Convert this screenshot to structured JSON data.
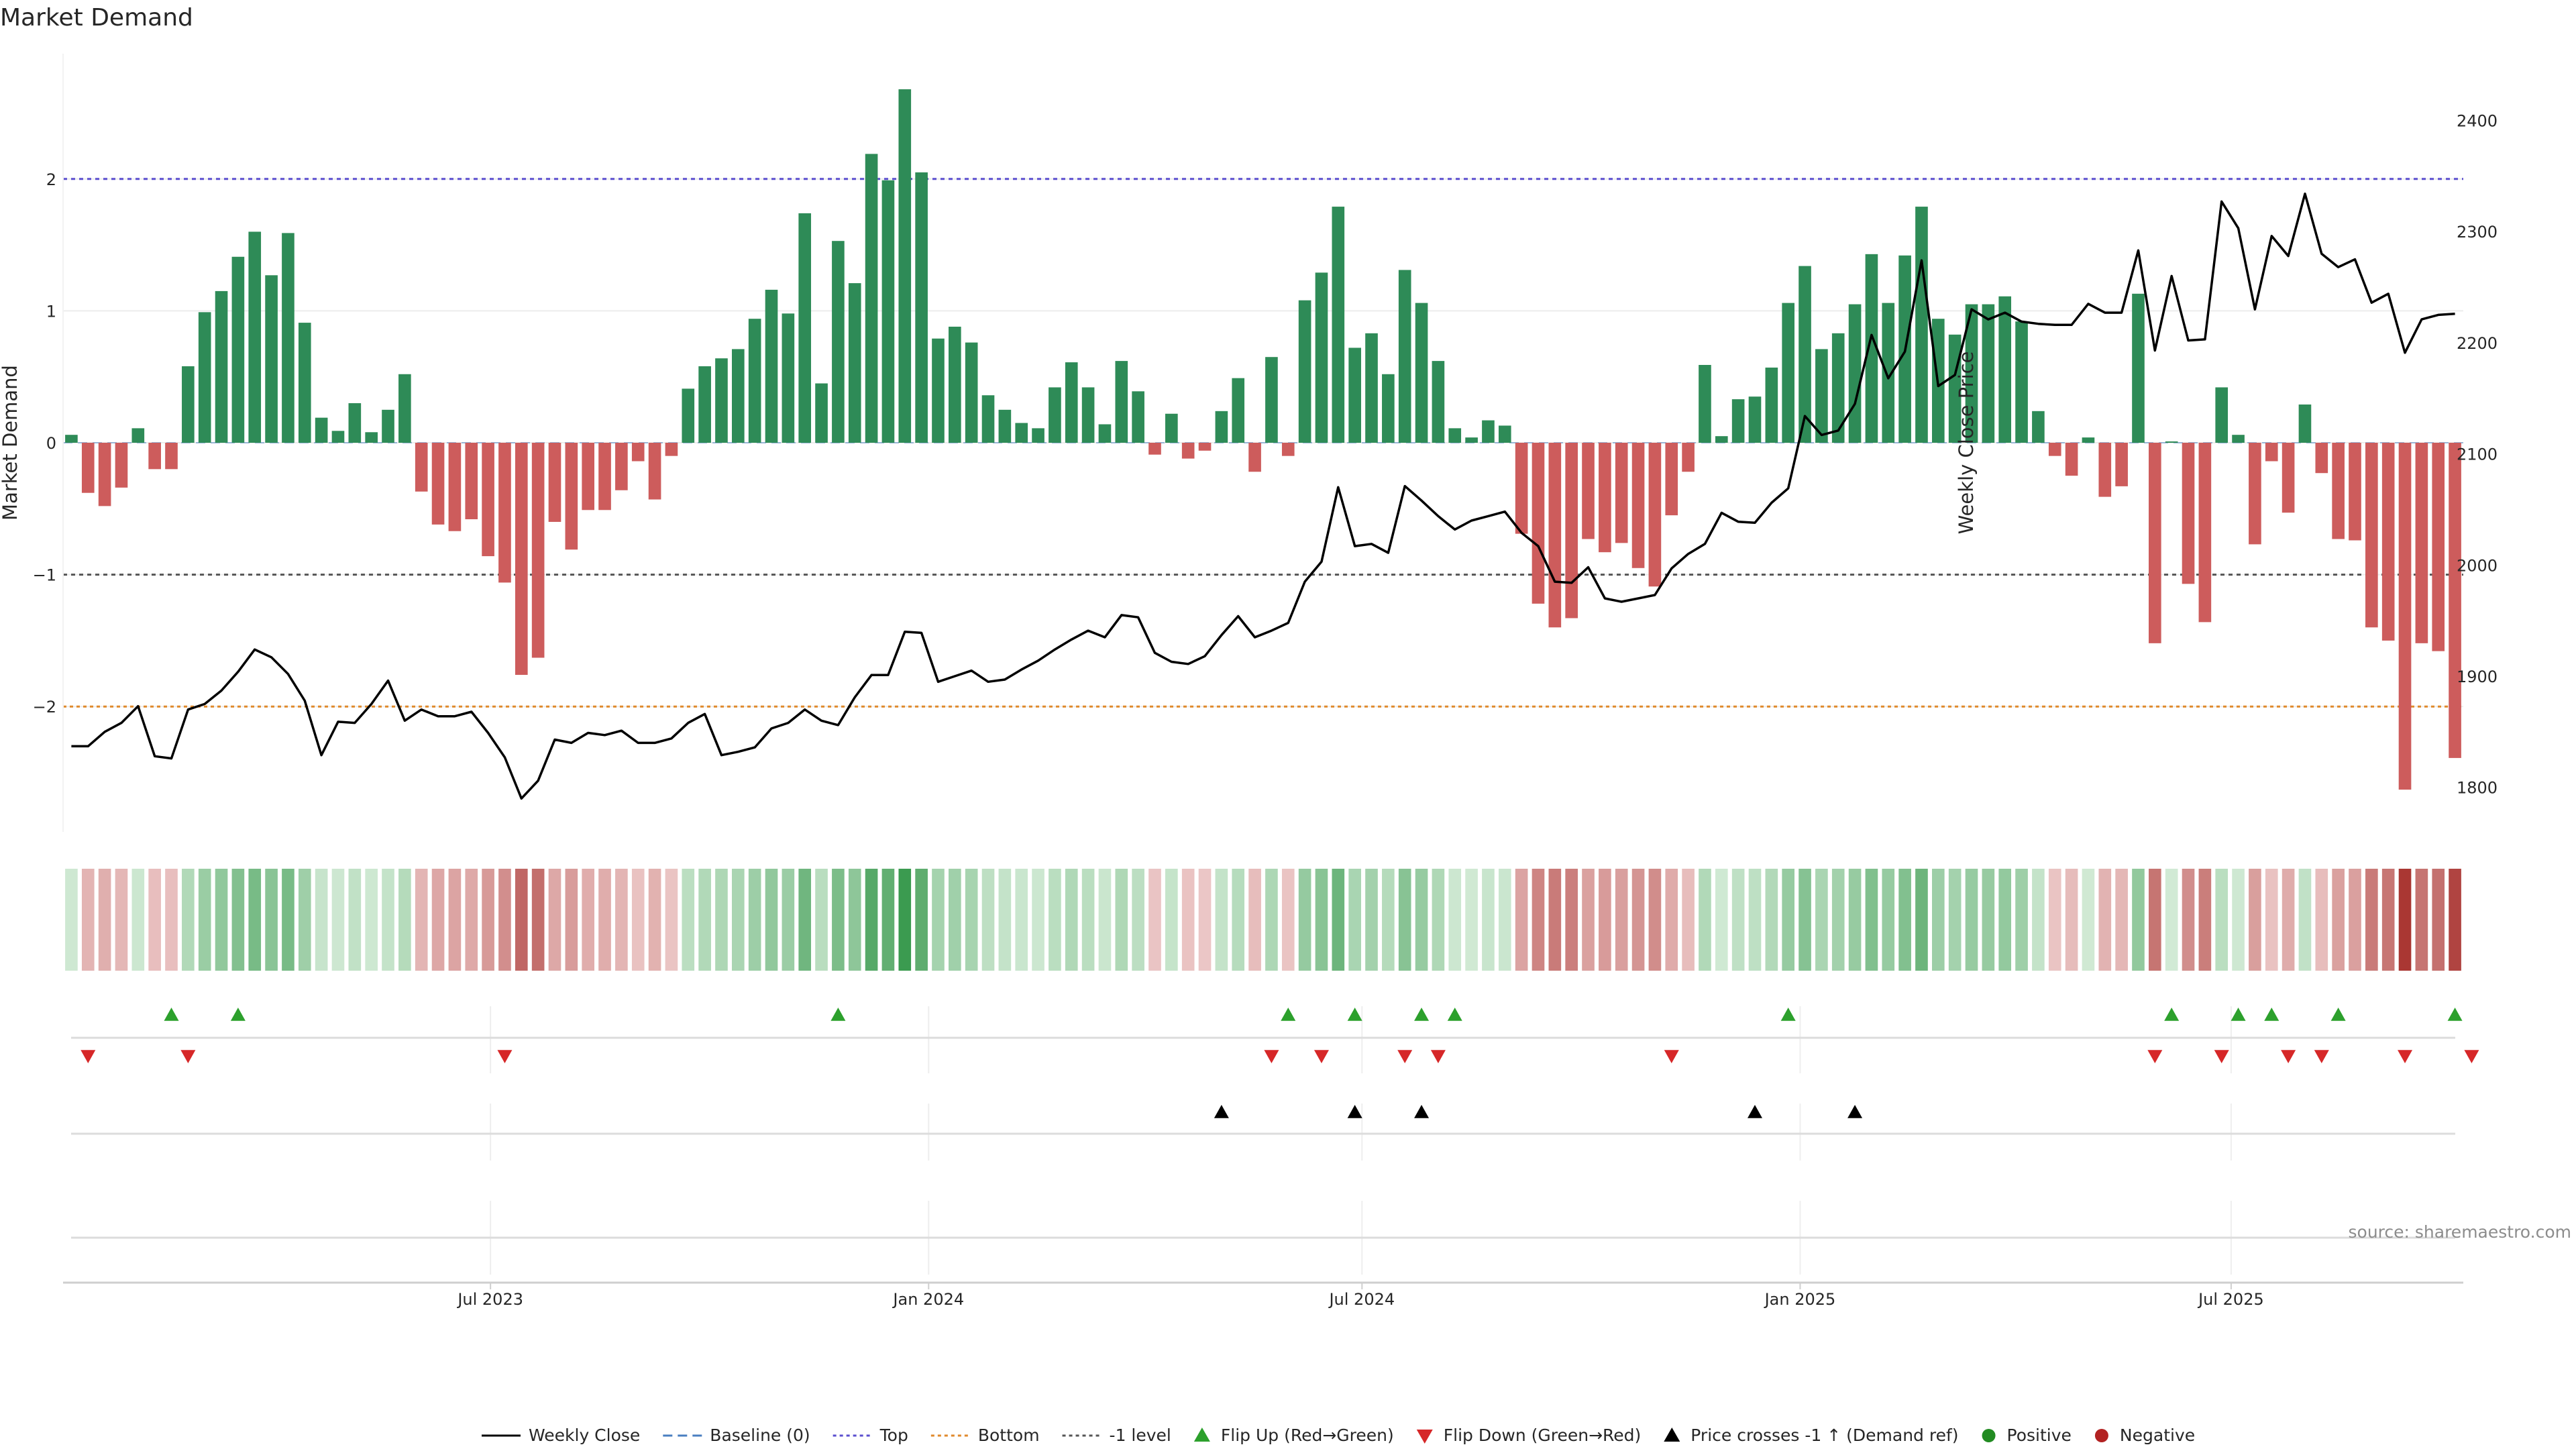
{
  "chart_data": {
    "type": "bar",
    "title": "Market Demand",
    "ylabel_left": "Market Demand",
    "ylabel_right": "Weekly Close Price",
    "source": "source: sharemaestro.com",
    "start_date": "2023-01-06",
    "week_spacing": 7,
    "ylim_left": [
      -2.95,
      2.95
    ],
    "ylim_right": [
      1760,
      2460
    ],
    "left_ticks": [
      2,
      1,
      0,
      -1,
      -2
    ],
    "left_tick_labels": [
      "2",
      "1",
      "0",
      "−1",
      "−2"
    ],
    "right_ticks": [
      2400,
      2300,
      2200,
      2100,
      2000,
      1900,
      1800
    ],
    "right_tick_labels": [
      "2400",
      "2300",
      "2200",
      "2100",
      "2000",
      "1900",
      "1800"
    ],
    "x_ticks": [
      {
        "date": "2023-07-01",
        "label": "Jul 2023"
      },
      {
        "date": "2024-01-01",
        "label": "Jan 2024"
      },
      {
        "date": "2024-07-01",
        "label": "Jul 2024"
      },
      {
        "date": "2025-01-01",
        "label": "Jan 2025"
      },
      {
        "date": "2025-07-01",
        "label": "Jul 2025"
      }
    ],
    "reference_lines": [
      {
        "name": "Top",
        "value": 2,
        "color": "#5b4fcf"
      },
      {
        "name": "-1 level",
        "value": -1,
        "color": "#555555"
      },
      {
        "name": "Bottom",
        "value": -2,
        "color": "#e08a2c"
      },
      {
        "name": "Baseline (0)",
        "value": 0,
        "color": "#4a7fc1"
      }
    ],
    "series": [
      {
        "name": "Market Demand",
        "values": [
          0.06,
          -0.38,
          -0.48,
          -0.34,
          0.11,
          -0.2,
          -0.2,
          0.58,
          0.99,
          1.15,
          1.41,
          1.6,
          1.27,
          1.59,
          0.91,
          0.19,
          0.09,
          0.3,
          0.08,
          0.25,
          0.52,
          -0.37,
          -0.62,
          -0.67,
          -0.58,
          -0.86,
          -1.06,
          -1.76,
          -1.63,
          -0.6,
          -0.81,
          -0.51,
          -0.51,
          -0.36,
          -0.14,
          -0.43,
          -0.1,
          0.41,
          0.58,
          0.64,
          0.71,
          0.94,
          1.16,
          0.98,
          1.74,
          0.45,
          1.53,
          1.21,
          2.19,
          1.99,
          2.68,
          2.05,
          0.79,
          0.88,
          0.76,
          0.36,
          0.25,
          0.15,
          0.11,
          0.42,
          0.61,
          0.42,
          0.14,
          0.62,
          0.39,
          -0.09,
          0.22,
          -0.12,
          -0.06,
          0.24,
          0.49,
          -0.22,
          0.65,
          -0.1,
          1.08,
          1.29,
          1.79,
          0.72,
          0.83,
          0.52,
          1.31,
          1.06,
          0.62,
          0.11,
          0.04,
          0.17,
          0.13,
          -0.69,
          -1.22,
          -1.4,
          -1.33,
          -0.73,
          -0.83,
          -0.76,
          -0.95,
          -1.09,
          -0.55,
          -0.22,
          0.59,
          0.05,
          0.33,
          0.35,
          0.57,
          1.06,
          1.34,
          0.71,
          0.83,
          1.05,
          1.43,
          1.06,
          1.42,
          1.79,
          0.94,
          0.82,
          1.05,
          1.05,
          1.11,
          0.92,
          0.24,
          -0.1,
          -0.25,
          0.04,
          -0.41,
          -0.33,
          1.13,
          -1.52,
          0.01,
          -1.07,
          -1.36,
          0.42,
          0.06,
          -0.77,
          -0.14,
          -0.53,
          0.29,
          -0.23,
          -0.73,
          -0.74,
          -1.4,
          -1.5,
          -2.63,
          -1.52,
          -1.58,
          -2.39
        ]
      },
      {
        "name": "Weekly Close",
        "values": [
          1837,
          1837,
          1850,
          1858,
          1873,
          1828,
          1826,
          1870,
          1875,
          1887,
          1904,
          1924,
          1917,
          1902,
          1878,
          1829,
          1859,
          1858,
          1875,
          1896,
          1860,
          1870,
          1864,
          1864,
          1868,
          1849,
          1827,
          1790,
          1806,
          1843,
          1840,
          1849,
          1847,
          1851,
          1840,
          1840,
          1844,
          1858,
          1866,
          1829,
          1832,
          1836,
          1853,
          1858,
          1870,
          1860,
          1856,
          1881,
          1901,
          1901,
          1940,
          1939,
          1895,
          1900,
          1905,
          1895,
          1897,
          1906,
          1914,
          1924,
          1933,
          1941,
          1935,
          1955,
          1953,
          1921,
          1913,
          1911,
          1918,
          1937,
          1954,
          1935,
          1941,
          1948,
          1985,
          2003,
          2070,
          2017,
          2019,
          2011,
          2071,
          2058,
          2044,
          2032,
          2040,
          2044,
          2048,
          2029,
          2017,
          1985,
          1984,
          1998,
          1970,
          1967,
          1970,
          1973,
          1997,
          2010,
          2019,
          2047,
          2039,
          2038,
          2056,
          2069,
          2134,
          2117,
          2121,
          2145,
          2207,
          2168,
          2192,
          2274,
          2161,
          2171,
          2230,
          2221,
          2227,
          2219,
          2217,
          2216,
          2216,
          2235,
          2227,
          2227,
          2283,
          2193,
          2260,
          2202,
          2203,
          2327,
          2303,
          2230,
          2296,
          2278,
          2334,
          2280,
          2268,
          2275,
          2236,
          2244,
          2191,
          2221,
          2225,
          2226
        ]
      }
    ],
    "flip_up_markers": [
      "2023-02-17",
      "2023-03-17",
      "2023-11-24",
      "2024-05-31",
      "2024-06-28",
      "2024-07-26",
      "2024-08-09",
      "2024-12-27",
      "2025-06-06",
      "2025-07-04",
      "2025-07-18",
      "2025-08-15",
      "2025-10-03"
    ],
    "flip_down_markers": [
      "2023-01-13",
      "2023-02-24",
      "2023-07-07",
      "2024-05-24",
      "2024-06-14",
      "2024-07-19",
      "2024-08-02",
      "2024-11-08",
      "2025-05-30",
      "2025-06-27",
      "2025-07-25",
      "2025-08-08",
      "2025-09-12",
      "2025-10-10"
    ],
    "price_cross_markers": [
      "2024-05-03",
      "2024-06-28",
      "2024-07-26",
      "2024-12-13",
      "2025-01-24"
    ],
    "legend": [
      {
        "label": "Weekly Close",
        "symbol": "line-solid",
        "color": "#000000"
      },
      {
        "label": "Baseline (0)",
        "symbol": "line-dashed",
        "color": "#4a7fc1"
      },
      {
        "label": "Top",
        "symbol": "line-dotted",
        "color": "#5b4fcf"
      },
      {
        "label": "Bottom",
        "symbol": "line-dotted",
        "color": "#e08a2c"
      },
      {
        "label": "-1 level",
        "symbol": "line-dotted",
        "color": "#555555"
      },
      {
        "label": "Flip Up (Red→Green)",
        "symbol": "triangle-up",
        "color": "#2ca02c"
      },
      {
        "label": "Flip Down (Green→Red)",
        "symbol": "triangle-down",
        "color": "#d62728"
      },
      {
        "label": "Price crosses -1 ↑ (Demand ref)",
        "symbol": "triangle-up",
        "color": "#000000"
      },
      {
        "label": "Positive",
        "symbol": "circle",
        "color": "#228b22"
      },
      {
        "label": "Negative",
        "symbol": "circle",
        "color": "#b22222"
      }
    ]
  },
  "colors": {
    "positive_bar": "#2e8b57",
    "negative_bar": "#cd5c5c",
    "price_line": "#000000",
    "flip_up": "#2ca02c",
    "flip_down": "#d62728",
    "price_cross": "#000000"
  }
}
